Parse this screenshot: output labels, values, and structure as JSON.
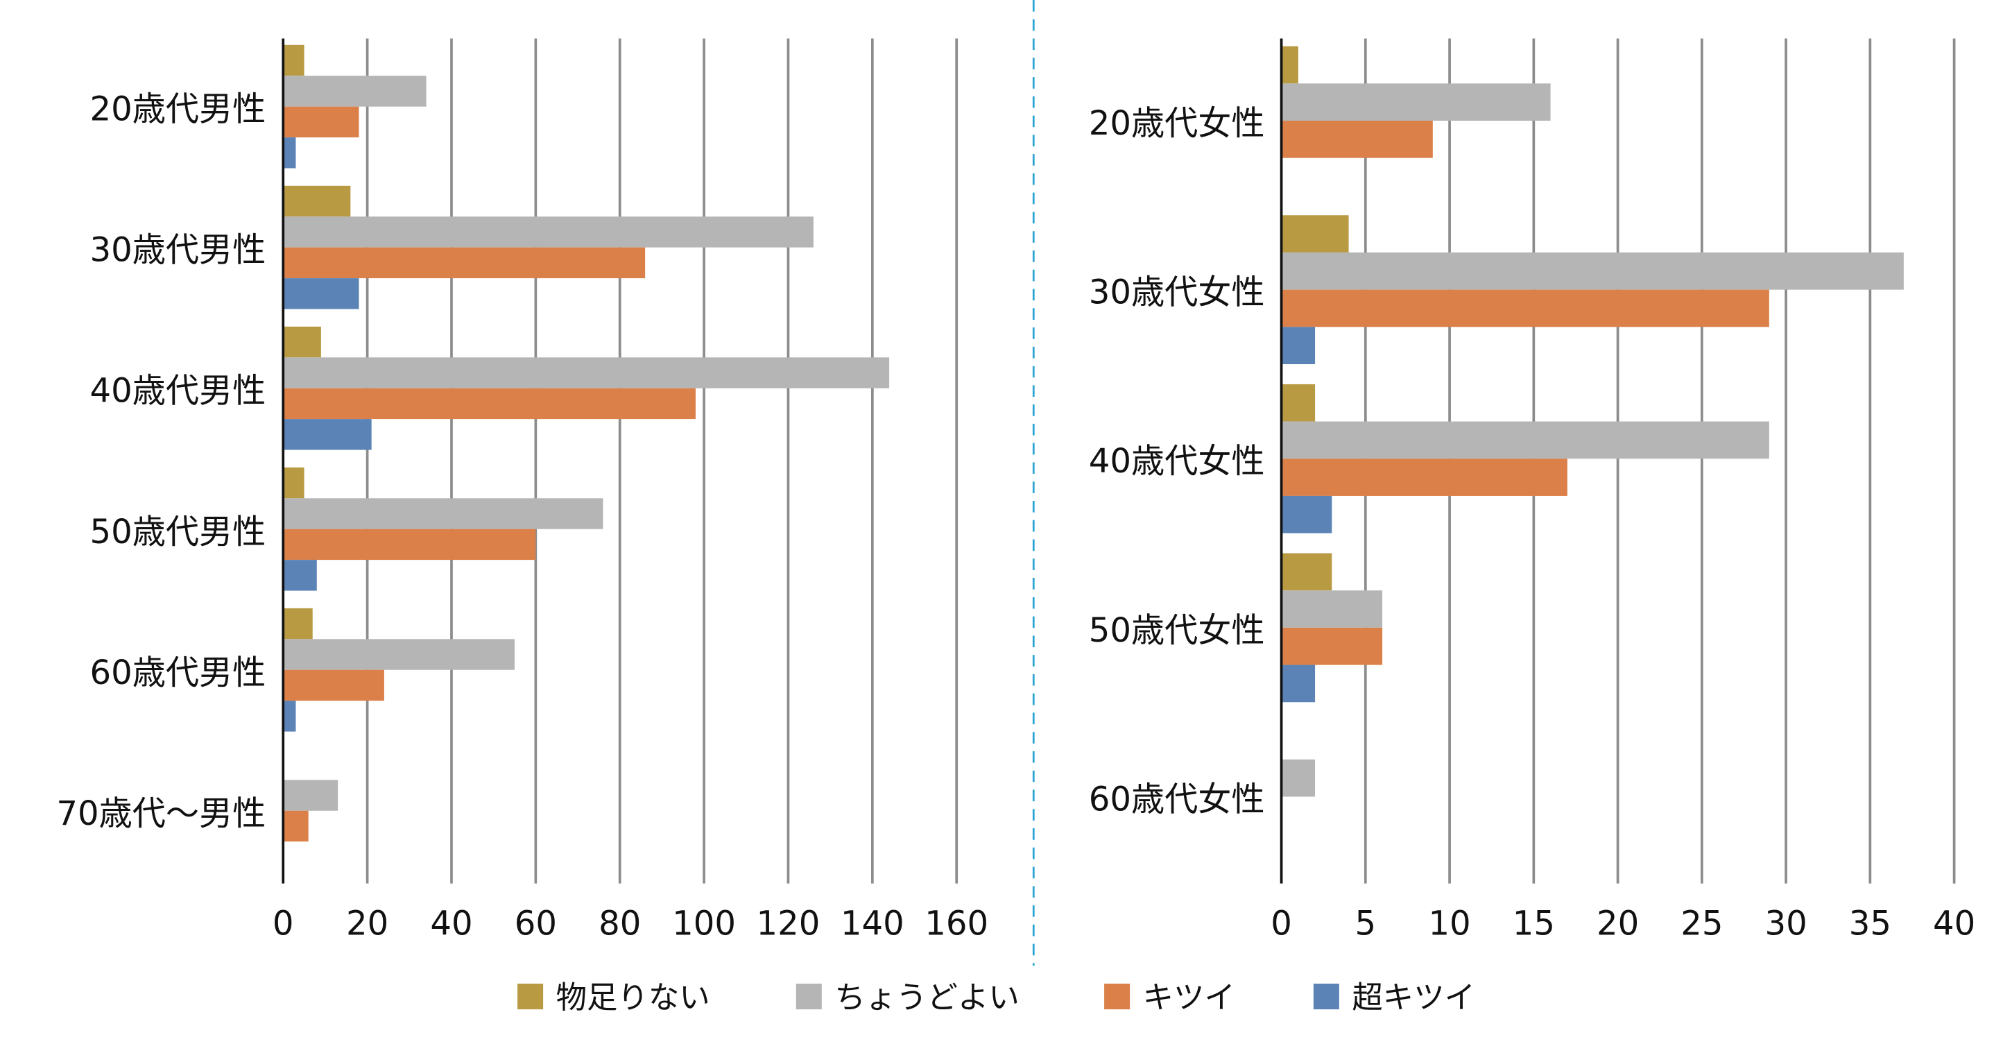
{
  "chart_data": [
    {
      "type": "bar",
      "orientation": "horizontal",
      "title": "",
      "xlabel": "",
      "ylabel": "",
      "xlim": [
        0,
        160
      ],
      "xticks": [
        "0",
        "20",
        "40",
        "60",
        "80",
        "100",
        "120",
        "140",
        "160"
      ],
      "grid": true,
      "categories": [
        "20歳代男性",
        "30歳代男性",
        "40歳代男性",
        "50歳代男性",
        "60歳代男性",
        "70歳代〜男性"
      ],
      "series": [
        {
          "name": "物足りない",
          "values": [
            5,
            16,
            9,
            5,
            7,
            0
          ]
        },
        {
          "name": "ちょうどよい",
          "values": [
            34,
            126,
            144,
            76,
            55,
            13
          ]
        },
        {
          "name": "キツイ",
          "values": [
            18,
            86,
            98,
            60,
            24,
            6
          ]
        },
        {
          "name": "超キツイ",
          "values": [
            3,
            18,
            21,
            8,
            3,
            0
          ]
        }
      ]
    },
    {
      "type": "bar",
      "orientation": "horizontal",
      "title": "",
      "xlabel": "",
      "ylabel": "",
      "xlim": [
        0,
        40
      ],
      "xticks": [
        "0",
        "5",
        "10",
        "15",
        "20",
        "25",
        "30",
        "35",
        "40"
      ],
      "grid": true,
      "categories": [
        "20歳代女性",
        "30歳代女性",
        "40歳代女性",
        "50歳代女性",
        "60歳代女性"
      ],
      "series": [
        {
          "name": "物足りない",
          "values": [
            1,
            4,
            2,
            3,
            0
          ]
        },
        {
          "name": "ちょうどよい",
          "values": [
            16,
            37,
            29,
            6,
            2
          ]
        },
        {
          "name": "キツイ",
          "values": [
            9,
            29,
            17,
            6,
            0
          ]
        },
        {
          "name": "超キツイ",
          "values": [
            0,
            2,
            3,
            2,
            0
          ]
        }
      ]
    }
  ],
  "legend": {
    "placement": "bottom",
    "items": [
      "物足りない",
      "ちょうどよい",
      "キツイ",
      "超キツイ"
    ]
  },
  "colors": {
    "series": [
      "#b89a43",
      "#b5b5b5",
      "#db8049",
      "#5b83b6"
    ],
    "grid": "#8c8c8c",
    "axis": "#111111",
    "divider": "#2ba3d3"
  }
}
